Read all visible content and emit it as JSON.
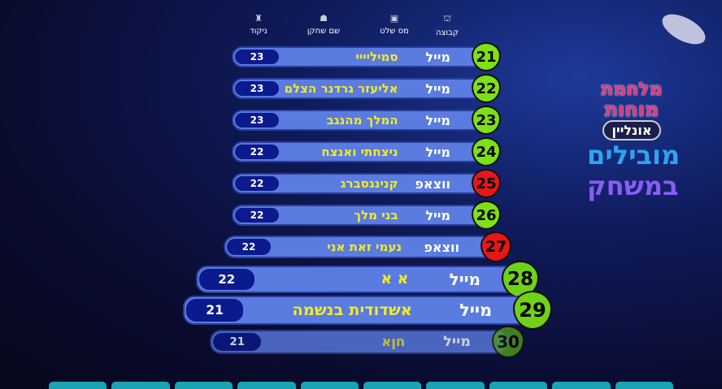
{
  "headers": [
    {
      "label": "קבוצה",
      "icon": "group-icon"
    },
    {
      "label": "מס שלט",
      "icon": "remote-icon"
    },
    {
      "label": "שם שחקן",
      "icon": "player-icon"
    },
    {
      "label": "ניקוד",
      "icon": "score-icon"
    }
  ],
  "rows": [
    {
      "rank": "21",
      "group": "מייל",
      "name": "סמיליייי",
      "score": "23",
      "color": "#7ee017"
    },
    {
      "rank": "22",
      "group": "מייל",
      "name": "אליעזר גרדנר הצלם",
      "score": "23",
      "color": "#7ee017"
    },
    {
      "rank": "23",
      "group": "מייל",
      "name": "המלך מהנגב",
      "score": "23",
      "color": "#7ee017"
    },
    {
      "rank": "24",
      "group": "מייל",
      "name": "ניצחתי ואנצח",
      "score": "22",
      "color": "#7ee017"
    },
    {
      "rank": "25",
      "group": "ווצאפ",
      "name": "קנינגסברג",
      "score": "22",
      "color": "#e81616"
    },
    {
      "rank": "26",
      "group": "מייל",
      "name": "בני מלך",
      "score": "22",
      "color": "#7ee017"
    },
    {
      "rank": "27",
      "group": "ווצאפ",
      "name": "נעמי זאת אני",
      "score": "22",
      "color": "#e81616"
    },
    {
      "rank": "28",
      "group": "מייל",
      "name": "א א",
      "score": "22",
      "color": "#6fd11a"
    },
    {
      "rank": "29",
      "group": "מייל",
      "name": "אשדודית בנשמה",
      "score": "21",
      "color": "#6fd11a"
    },
    {
      "rank": "30",
      "group": "מייל",
      "name": "חןא",
      "score": "21",
      "color": "#4d9a1c"
    }
  ],
  "logo": {
    "title_line1": "מלחמת",
    "title_line2": "מוחות",
    "badge": "אונליין"
  },
  "leaders_line1": "מובילים",
  "leaders_line2": "במשחק"
}
